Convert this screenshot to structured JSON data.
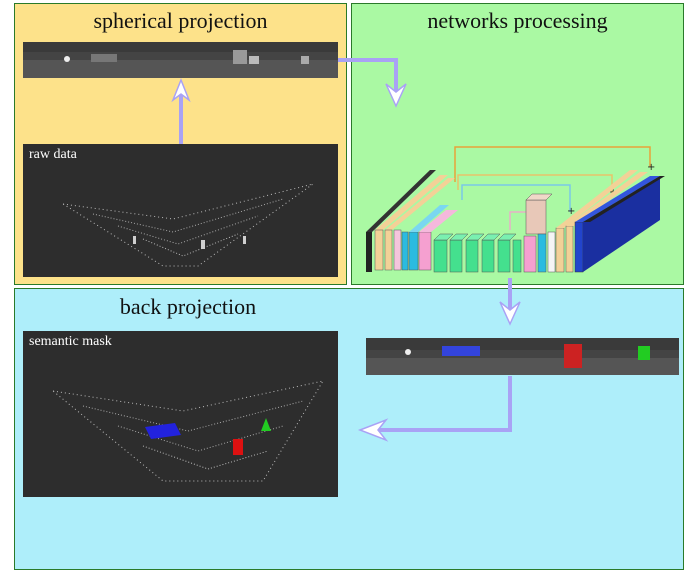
{
  "panels": {
    "spherical": {
      "title": "spherical projection",
      "color": "#fde28a"
    },
    "networks": {
      "title": "networks processing",
      "color": "#aaf9a3"
    },
    "back": {
      "title": "back projection",
      "color": "#aeeefa"
    }
  },
  "images": {
    "raw_data": {
      "label": "raw data"
    },
    "semantic_mask": {
      "label": "semantic mask"
    }
  },
  "colors": {
    "arrow": "#a9a2f5",
    "panel_border": "#2a7a2a",
    "image_bg": "#2d2d2d",
    "class_car": "#2222dd",
    "class_person": "#dd1111",
    "class_vegetation": "#22cc22"
  }
}
